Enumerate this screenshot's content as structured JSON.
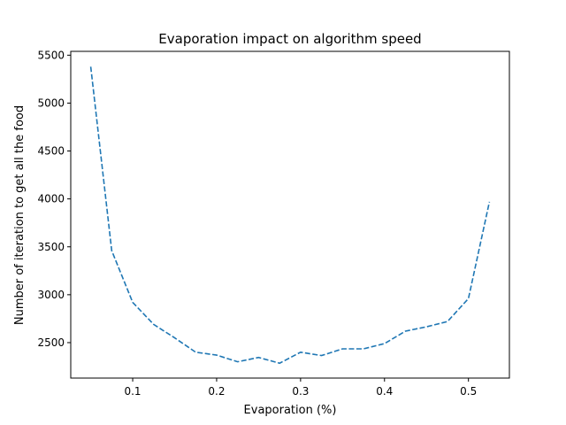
{
  "chart_data": {
    "type": "line",
    "title": "Evaporation impact on algorithm speed",
    "xlabel": "Evaporation (%)",
    "ylabel": "Number of iteration to get all the food",
    "xlim": [
      0.0262,
      0.5488
    ],
    "ylim": [
      2130,
      5540
    ],
    "x_ticks": [
      0.1,
      0.2,
      0.3,
      0.4,
      0.5
    ],
    "x_tick_labels": [
      "0.1",
      "0.2",
      "0.3",
      "0.4",
      "0.5"
    ],
    "y_ticks": [
      2500,
      3000,
      3500,
      4000,
      4500,
      5000,
      5500
    ],
    "y_tick_labels": [
      "2500",
      "3000",
      "3500",
      "4000",
      "4500",
      "5000",
      "5500"
    ],
    "grid": false,
    "series": [
      {
        "line_style": "dashed",
        "color": "#1f77b4",
        "x": [
          0.05,
          0.075,
          0.1,
          0.125,
          0.15,
          0.175,
          0.2,
          0.225,
          0.25,
          0.275,
          0.3,
          0.325,
          0.35,
          0.375,
          0.4,
          0.425,
          0.45,
          0.475,
          0.5,
          0.525
        ],
        "y": [
          5380,
          3460,
          2920,
          2690,
          2550,
          2400,
          2370,
          2300,
          2345,
          2285,
          2400,
          2365,
          2435,
          2435,
          2490,
          2620,
          2665,
          2720,
          2960,
          3970
        ]
      }
    ]
  }
}
